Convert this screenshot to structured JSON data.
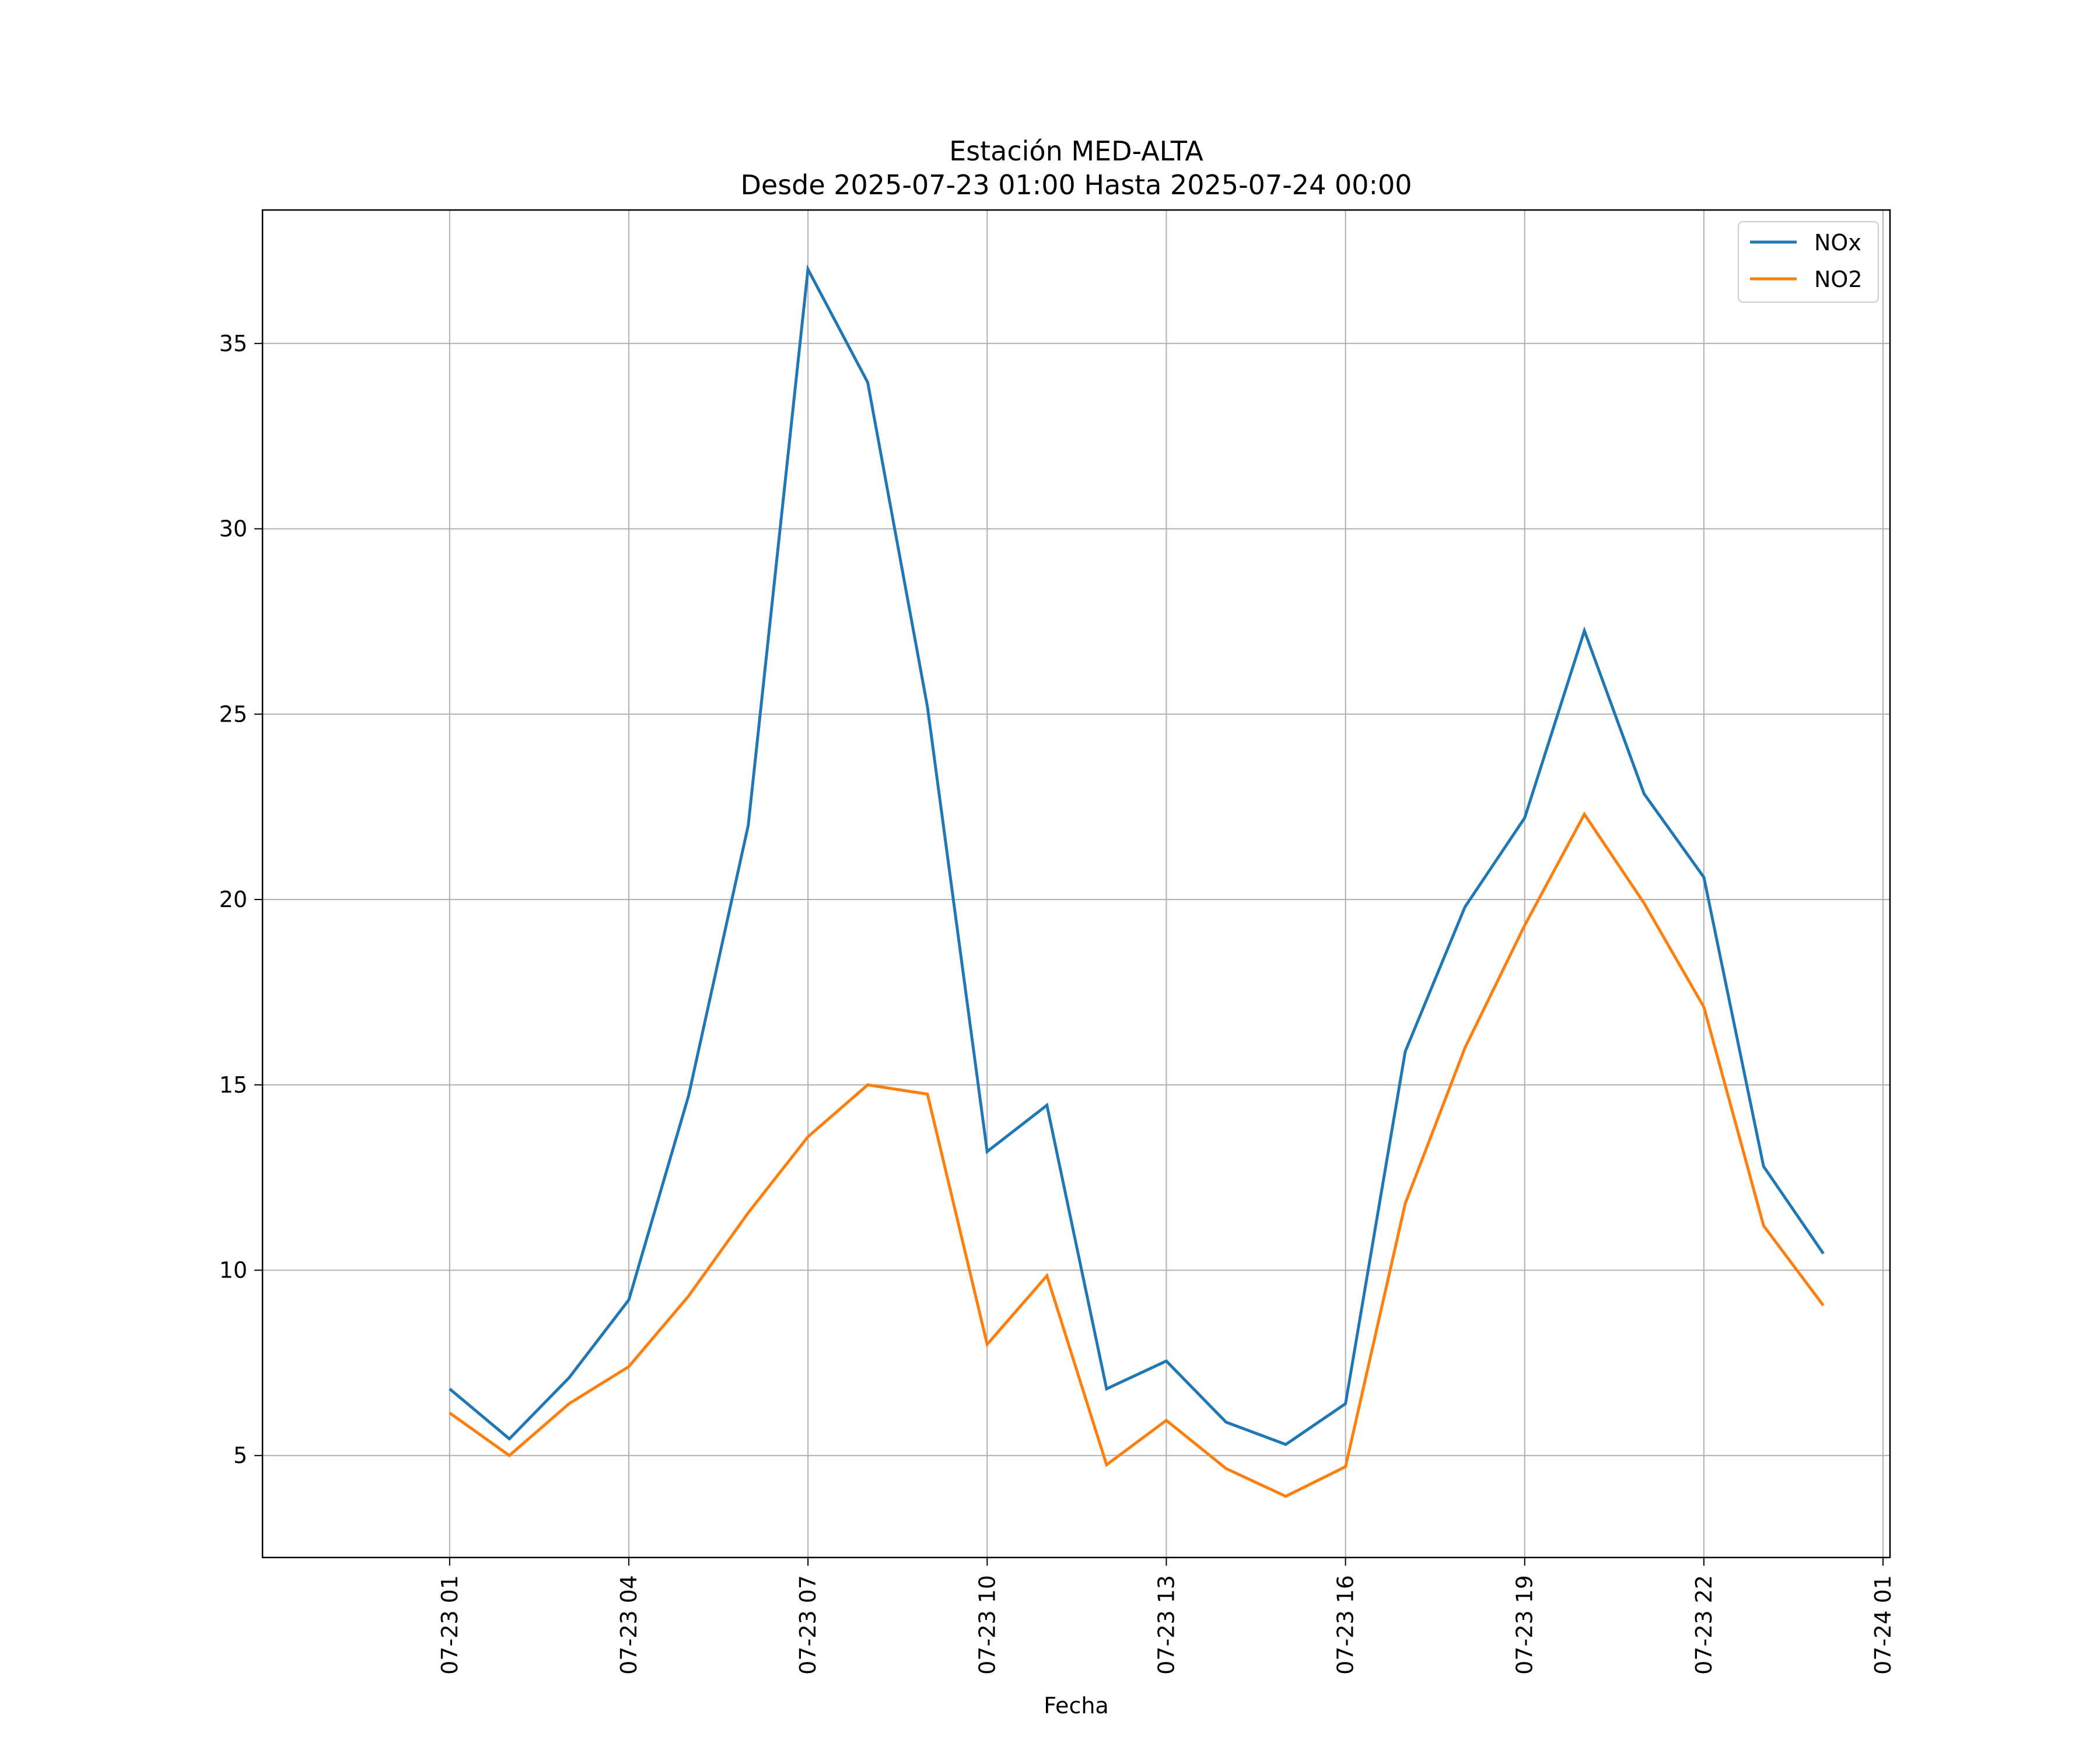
{
  "chart_data": {
    "type": "line",
    "title": "Estación MED-ALTA",
    "subtitle": "Desde 2025-07-23 01:00 Hasta 2025-07-24 00:00",
    "xlabel": "Fecha",
    "ylabel": "",
    "x": [
      "2025-07-23 01:00",
      "2025-07-23 02:00",
      "2025-07-23 03:00",
      "2025-07-23 04:00",
      "2025-07-23 05:00",
      "2025-07-23 06:00",
      "2025-07-23 07:00",
      "2025-07-23 08:00",
      "2025-07-23 09:00",
      "2025-07-23 10:00",
      "2025-07-23 11:00",
      "2025-07-23 12:00",
      "2025-07-23 13:00",
      "2025-07-23 14:00",
      "2025-07-23 15:00",
      "2025-07-23 16:00",
      "2025-07-23 17:00",
      "2025-07-23 18:00",
      "2025-07-23 19:00",
      "2025-07-23 20:00",
      "2025-07-23 21:00",
      "2025-07-23 22:00",
      "2025-07-23 23:00",
      "2025-07-24 00:00"
    ],
    "xlim": [
      "2025-07-22 21:52",
      "2025-07-24 01:07"
    ],
    "x_ticks": [
      {
        "value": "2025-07-23 01:00",
        "label": "07-23 01"
      },
      {
        "value": "2025-07-23 04:00",
        "label": "07-23 04"
      },
      {
        "value": "2025-07-23 07:00",
        "label": "07-23 07"
      },
      {
        "value": "2025-07-23 10:00",
        "label": "07-23 10"
      },
      {
        "value": "2025-07-23 13:00",
        "label": "07-23 13"
      },
      {
        "value": "2025-07-23 16:00",
        "label": "07-23 16"
      },
      {
        "value": "2025-07-23 19:00",
        "label": "07-23 19"
      },
      {
        "value": "2025-07-23 22:00",
        "label": "07-23 22"
      },
      {
        "value": "2025-07-24 01:00",
        "label": "07-24 01"
      }
    ],
    "ylim": [
      2.25,
      38.6
    ],
    "y_ticks": [
      5,
      10,
      15,
      20,
      25,
      30,
      35
    ],
    "grid": true,
    "legend_position": "top-right",
    "series": [
      {
        "name": "NOx",
        "color": "#1f77b4",
        "values": [
          6.8,
          5.45,
          7.1,
          9.2,
          14.7,
          22.0,
          37.0,
          33.95,
          25.2,
          13.2,
          14.45,
          6.8,
          7.55,
          5.9,
          5.3,
          6.4,
          15.9,
          19.8,
          22.2,
          27.25,
          22.85,
          20.6,
          12.8,
          10.45
        ]
      },
      {
        "name": "NO2",
        "color": "#ff7f0e",
        "values": [
          6.15,
          5.0,
          6.4,
          7.4,
          9.3,
          11.55,
          13.6,
          15.0,
          14.75,
          8.0,
          9.85,
          4.75,
          5.95,
          4.65,
          3.9,
          4.7,
          11.8,
          16.0,
          19.3,
          22.3,
          19.9,
          17.1,
          11.2,
          9.05
        ]
      }
    ]
  }
}
